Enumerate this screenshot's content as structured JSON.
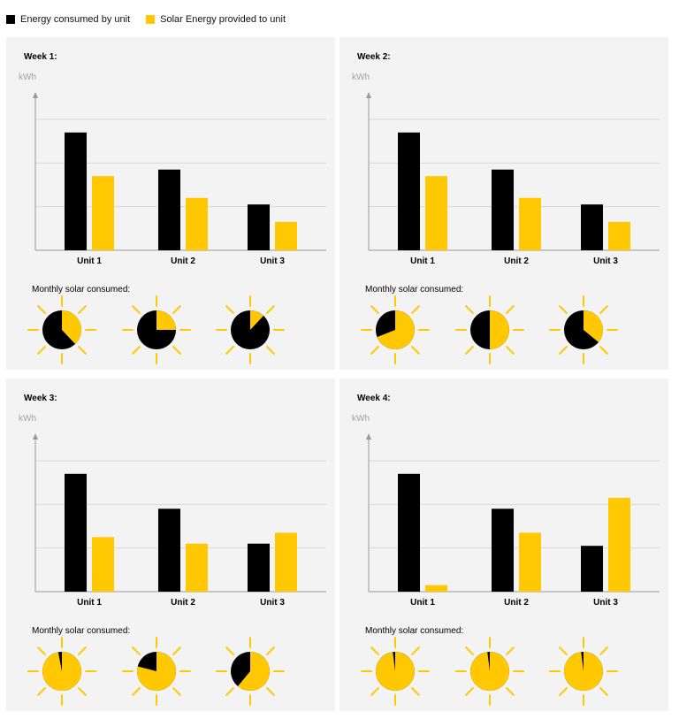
{
  "legend": {
    "items": [
      {
        "label": "Energy consumed by unit",
        "color": "#000000"
      },
      {
        "label": "Solar Energy provided to unit",
        "color": "#ffc800"
      }
    ]
  },
  "colors": {
    "consumed": "#000000",
    "solar": "#ffc800",
    "ray": "#ffc800",
    "grid": "#d8d8d8",
    "axis": "#9a9a9a",
    "panel": "#f3f3f3"
  },
  "unit_label": "kWh",
  "monthly_label": "Monthly solar consumed:",
  "panels": [
    {
      "title": "Week 1:"
    },
    {
      "title": "Week 2:"
    },
    {
      "title": "Week 3:"
    },
    {
      "title": "Week 4:"
    }
  ],
  "chart_data": [
    {
      "type": "bar",
      "title": "Week 1:",
      "ylabel": "kWh",
      "categories": [
        "Unit 1",
        "Unit 2",
        "Unit 3"
      ],
      "series": [
        {
          "name": "Energy consumed by unit",
          "values": [
            2.7,
            1.85,
            1.05
          ]
        },
        {
          "name": "Solar Energy provided to unit",
          "values": [
            1.7,
            1.2,
            0.65
          ]
        }
      ],
      "ylim": [
        0,
        3
      ],
      "grid": true,
      "monthly_solar_fraction": [
        0.38,
        0.25,
        0.12
      ]
    },
    {
      "type": "bar",
      "title": "Week 2:",
      "ylabel": "kWh",
      "categories": [
        "Unit 1",
        "Unit 2",
        "Unit 3"
      ],
      "series": [
        {
          "name": "Energy consumed by unit",
          "values": [
            2.7,
            1.85,
            1.05
          ]
        },
        {
          "name": "Solar Energy provided to unit",
          "values": [
            1.7,
            1.2,
            0.65
          ]
        }
      ],
      "ylim": [
        0,
        3
      ],
      "grid": true,
      "monthly_solar_fraction": [
        0.69,
        0.5,
        0.36
      ]
    },
    {
      "type": "bar",
      "title": "Week 3:",
      "ylabel": "kWh",
      "categories": [
        "Unit 1",
        "Unit 2",
        "Unit 3"
      ],
      "series": [
        {
          "name": "Energy consumed by unit",
          "values": [
            2.7,
            1.9,
            1.1
          ]
        },
        {
          "name": "Solar Energy provided to unit",
          "values": [
            1.25,
            1.1,
            1.35
          ]
        }
      ],
      "ylim": [
        0,
        3
      ],
      "grid": true,
      "monthly_solar_fraction": [
        0.97,
        0.79,
        0.61
      ]
    },
    {
      "type": "bar",
      "title": "Week 4:",
      "ylabel": "kWh",
      "categories": [
        "Unit 1",
        "Unit 2",
        "Unit 3"
      ],
      "series": [
        {
          "name": "Energy consumed by unit",
          "values": [
            2.7,
            1.9,
            1.05
          ]
        },
        {
          "name": "Solar Energy provided to unit",
          "values": [
            0.15,
            1.35,
            2.15
          ]
        }
      ],
      "ylim": [
        0,
        3
      ],
      "grid": true,
      "monthly_solar_fraction": [
        0.98,
        0.98,
        0.98
      ]
    }
  ]
}
